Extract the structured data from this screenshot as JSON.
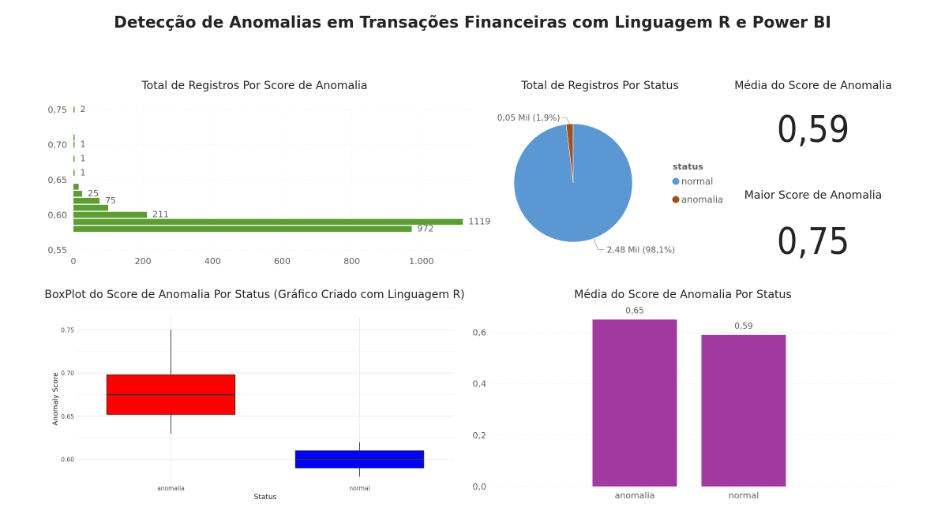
{
  "page": {
    "title": "Detecção de Anomalias em Transações Financeiras com Linguagem R e Power BI"
  },
  "kpis": {
    "avg_score_title": "Média do Score de Anomalia",
    "avg_score_value": "0,59",
    "max_score_title": "Maior Score de Anomalia",
    "max_score_value": "0,75"
  },
  "chart_data": [
    {
      "type": "bar",
      "orientation": "horizontal",
      "title": "Total de Registros Por Score de Anomalia",
      "color": "#5C9E33",
      "xlim": [
        0,
        1150
      ],
      "ylim": [
        0.55,
        0.76
      ],
      "x_ticks": [
        0,
        200,
        400,
        600,
        800,
        1000
      ],
      "x_tick_labels": [
        "0",
        "200",
        "400",
        "600",
        "800",
        "1.000"
      ],
      "y_ticks": [
        0.55,
        0.6,
        0.65,
        0.7,
        0.75
      ],
      "y_tick_labels": [
        "0,55",
        "0,60",
        "0,65",
        "0,70",
        "0,75"
      ],
      "grid": true,
      "bars": [
        {
          "y": 0.58,
          "value": 972,
          "label": "972"
        },
        {
          "y": 0.59,
          "value": 1119,
          "label": "1119"
        },
        {
          "y": 0.6,
          "value": 211,
          "label": "211"
        },
        {
          "y": 0.61,
          "value": 100,
          "label": ""
        },
        {
          "y": 0.62,
          "value": 75,
          "label": "75"
        },
        {
          "y": 0.63,
          "value": 25,
          "label": "25"
        },
        {
          "y": 0.64,
          "value": 15,
          "label": ""
        },
        {
          "y": 0.66,
          "value": 1,
          "label": "1"
        },
        {
          "y": 0.68,
          "value": 1,
          "label": "1"
        },
        {
          "y": 0.7,
          "value": 1,
          "label": "1"
        },
        {
          "y": 0.71,
          "value": 1,
          "label": ""
        },
        {
          "y": 0.75,
          "value": 2,
          "label": "2"
        }
      ]
    },
    {
      "type": "pie",
      "title": "Total de Registros Por Status",
      "legend_title": "status",
      "legend_position": "right",
      "slices": [
        {
          "name": "normal",
          "value": 2.48,
          "percent": 98.1,
          "label": "2,48 Mil (98,1%)",
          "color": "#5B97D2"
        },
        {
          "name": "anomalia",
          "value": 0.05,
          "percent": 1.9,
          "label": "0,05 Mil (1,9%)",
          "color": "#A3501C"
        }
      ]
    },
    {
      "type": "boxplot",
      "title": "BoxPlot do Score de Anomalia Por Status (Gráfico Criado com Linguagem R)",
      "xlabel": "Status",
      "ylabel": "Anomaly Score",
      "ylim": [
        0.575,
        0.765
      ],
      "y_ticks": [
        0.6,
        0.65,
        0.7,
        0.75
      ],
      "y_tick_labels": [
        "0.60",
        "0.65",
        "0.70",
        "0.75"
      ],
      "categories": [
        "anomalia",
        "normal"
      ],
      "boxes": [
        {
          "category": "anomalia",
          "min": 0.63,
          "q1": 0.652,
          "median": 0.675,
          "q3": 0.698,
          "max": 0.75,
          "color": "#FF0000"
        },
        {
          "category": "normal",
          "min": 0.58,
          "q1": 0.59,
          "median": 0.6,
          "q3": 0.61,
          "max": 0.62,
          "color": "#0000FF"
        }
      ]
    },
    {
      "type": "bar",
      "title": "Média do Score de Anomalia Por Status",
      "color": "#A139A0",
      "categories": [
        "anomalia",
        "normal"
      ],
      "values": [
        0.65,
        0.59
      ],
      "value_labels": [
        "0,65",
        "0,59"
      ],
      "ylim": [
        0,
        0.66
      ],
      "y_ticks": [
        0,
        0.2,
        0.4,
        0.6
      ],
      "y_tick_labels": [
        "0,0",
        "0,2",
        "0,4",
        "0,6"
      ],
      "grid": true
    }
  ]
}
